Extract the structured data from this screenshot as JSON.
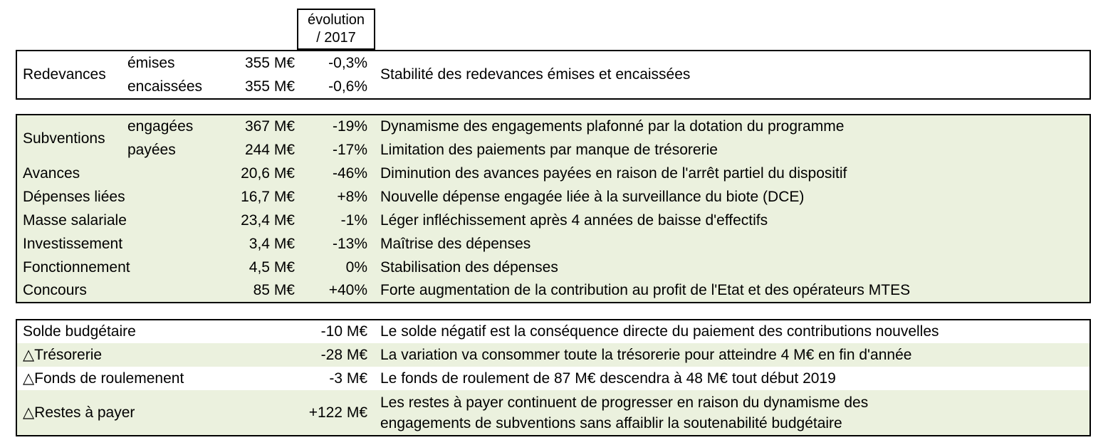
{
  "header": {
    "line1": "évolution",
    "line2": "/ 2017"
  },
  "redevances": {
    "label": "Redevances",
    "comment": "Stabilité des redevances émises et encaissées",
    "rows": [
      {
        "sub": "émises",
        "value": "355 M€",
        "evolution": "-0,3%"
      },
      {
        "sub": "encaissées",
        "value": "355 M€",
        "evolution": "-0,6%"
      }
    ]
  },
  "depenses": {
    "group_label": "Subventions",
    "rows": [
      {
        "sub": "engagées",
        "value": "367 M€",
        "evolution": "-19%",
        "comment": "Dynamisme des engagements plafonné par la dotation du programme"
      },
      {
        "sub": "payées",
        "value": "244 M€",
        "evolution": "-17%",
        "comment": "Limitation des paiements par manque de trésorerie"
      },
      {
        "label": "Avances",
        "value": "20,6 M€",
        "evolution": "-46%",
        "comment": "Diminution des avances payées en raison de l'arrêt partiel du dispositif"
      },
      {
        "label": "Dépenses liées",
        "value": "16,7 M€",
        "evolution": "+8%",
        "comment": "Nouvelle dépense engagée liée à la surveillance du biote (DCE)"
      },
      {
        "label": "Masse salariale",
        "value": "23,4 M€",
        "evolution": "-1%",
        "comment": "Léger infléchissement après 4 années de baisse d'effectifs"
      },
      {
        "label": "Investissement",
        "value": "3,4 M€",
        "evolution": "-13%",
        "comment": "Maîtrise des dépenses"
      },
      {
        "label": "Fonctionnement",
        "value": "4,5 M€",
        "evolution": "0%",
        "comment": "Stabilisation des dépenses"
      },
      {
        "label": "Concours",
        "value": "85 M€",
        "evolution": "+40%",
        "comment": "Forte augmentation de la contribution au profit de l'Etat et des opérateurs MTES"
      }
    ]
  },
  "soldes": {
    "rows": [
      {
        "label": "Solde budgétaire",
        "value": "-10 M€",
        "comment": "Le solde négatif est la conséquence directe du paiement des contributions nouvelles"
      },
      {
        "label": "△Trésorerie",
        "value": "-28 M€",
        "comment": "La variation va consommer toute la trésorerie pour atteindre 4 M€ en fin d'année"
      },
      {
        "label": "△Fonds de roulemenent",
        "value": "-3 M€",
        "comment": "Le fonds de roulement de 87 M€ descendra à 48 M€ tout début 2019"
      },
      {
        "label": "△Restes à payer",
        "value": "+122 M€",
        "comment": "Les restes à payer continuent de progresser en raison du dynamisme des engagements de subventions sans affaiblir la soutenabilité budgétaire"
      }
    ]
  },
  "colors": {
    "table_green": "#ebf1de",
    "border": "#000000",
    "background": "#ffffff"
  }
}
